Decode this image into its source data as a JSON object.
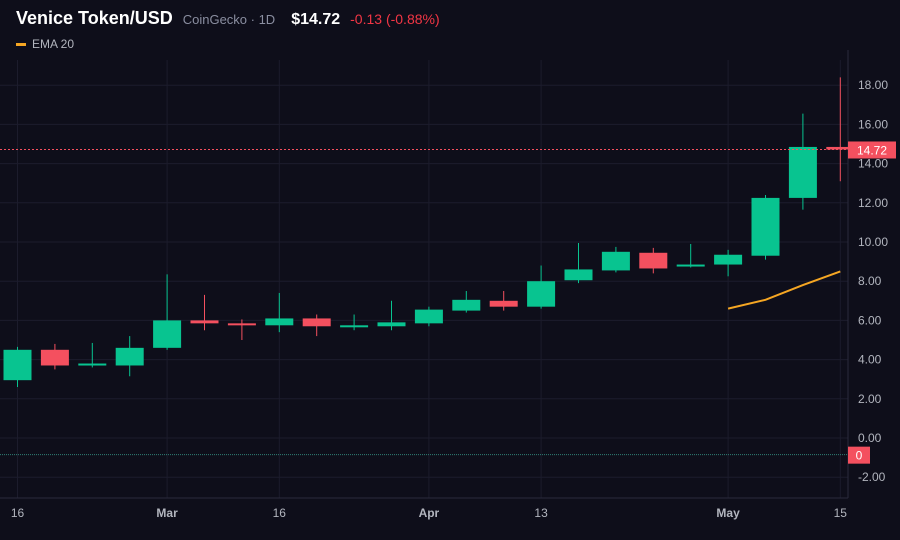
{
  "header": {
    "title": "Venice Token/USD",
    "meta": "CoinGecko · 1D",
    "price": "$14.72",
    "change": "-0.13 (-0.88%)"
  },
  "legend": {
    "ema_label": "EMA 20",
    "ema_color": "#f5a623"
  },
  "colors": {
    "up": "#08c490",
    "down": "#f4505f",
    "background": "#0e0e1a",
    "grid": "#1c1c2c"
  },
  "chart_data": {
    "type": "candlestick",
    "title": "Venice Token/USD",
    "y_ticks": [
      "18.00",
      "16.00",
      "14.00",
      "12.00",
      "10.00",
      "8.00",
      "6.00",
      "4.00",
      "2.00",
      "0.00",
      "-2.00"
    ],
    "ylim": [
      -2.8,
      19.5
    ],
    "x_labels": [
      {
        "label": "16",
        "index": 0,
        "bold": false
      },
      {
        "label": "Mar",
        "index": 4,
        "bold": true
      },
      {
        "label": "16",
        "index": 7,
        "bold": false
      },
      {
        "label": "Apr",
        "index": 11,
        "bold": true
      },
      {
        "label": "13",
        "index": 14,
        "bold": false
      },
      {
        "label": "May",
        "index": 19,
        "bold": true
      },
      {
        "label": "15",
        "index": 22,
        "bold": false
      }
    ],
    "candles": [
      {
        "o": 2.95,
        "h": 4.65,
        "l": 2.6,
        "c": 4.5
      },
      {
        "o": 4.5,
        "h": 4.8,
        "l": 3.5,
        "c": 3.7
      },
      {
        "o": 3.7,
        "h": 4.85,
        "l": 3.6,
        "c": 3.8
      },
      {
        "o": 3.7,
        "h": 5.2,
        "l": 3.15,
        "c": 4.6
      },
      {
        "o": 4.6,
        "h": 8.35,
        "l": 4.5,
        "c": 6.0
      },
      {
        "o": 6.0,
        "h": 7.3,
        "l": 5.5,
        "c": 5.85
      },
      {
        "o": 5.85,
        "h": 6.05,
        "l": 5.0,
        "c": 5.8
      },
      {
        "o": 5.75,
        "h": 7.4,
        "l": 5.4,
        "c": 6.1
      },
      {
        "o": 6.1,
        "h": 6.3,
        "l": 5.2,
        "c": 5.7
      },
      {
        "o": 5.65,
        "h": 6.3,
        "l": 5.5,
        "c": 5.75
      },
      {
        "o": 5.7,
        "h": 7.0,
        "l": 5.5,
        "c": 5.9
      },
      {
        "o": 5.85,
        "h": 6.7,
        "l": 5.7,
        "c": 6.55
      },
      {
        "o": 6.5,
        "h": 7.5,
        "l": 6.4,
        "c": 7.05
      },
      {
        "o": 7.0,
        "h": 7.5,
        "l": 6.5,
        "c": 6.7
      },
      {
        "o": 6.7,
        "h": 8.8,
        "l": 6.6,
        "c": 8.0
      },
      {
        "o": 8.05,
        "h": 9.95,
        "l": 7.9,
        "c": 8.6
      },
      {
        "o": 8.55,
        "h": 9.75,
        "l": 8.45,
        "c": 9.5
      },
      {
        "o": 9.45,
        "h": 9.7,
        "l": 8.4,
        "c": 8.65
      },
      {
        "o": 8.75,
        "h": 9.9,
        "l": 8.7,
        "c": 8.85
      },
      {
        "o": 8.85,
        "h": 9.6,
        "l": 8.25,
        "c": 9.35
      },
      {
        "o": 9.3,
        "h": 12.4,
        "l": 9.1,
        "c": 12.25
      },
      {
        "o": 12.25,
        "h": 16.55,
        "l": 11.65,
        "c": 14.85
      },
      {
        "o": 14.85,
        "h": 18.4,
        "l": 13.1,
        "c": 14.72
      }
    ],
    "ema": {
      "name": "EMA 20",
      "start_index": 19,
      "values": [
        6.6,
        7.05,
        7.8,
        8.5
      ]
    },
    "price_line": {
      "value": 14.72,
      "label": "14.72"
    },
    "volume_line": {
      "value": -0.85,
      "label": "0"
    }
  }
}
